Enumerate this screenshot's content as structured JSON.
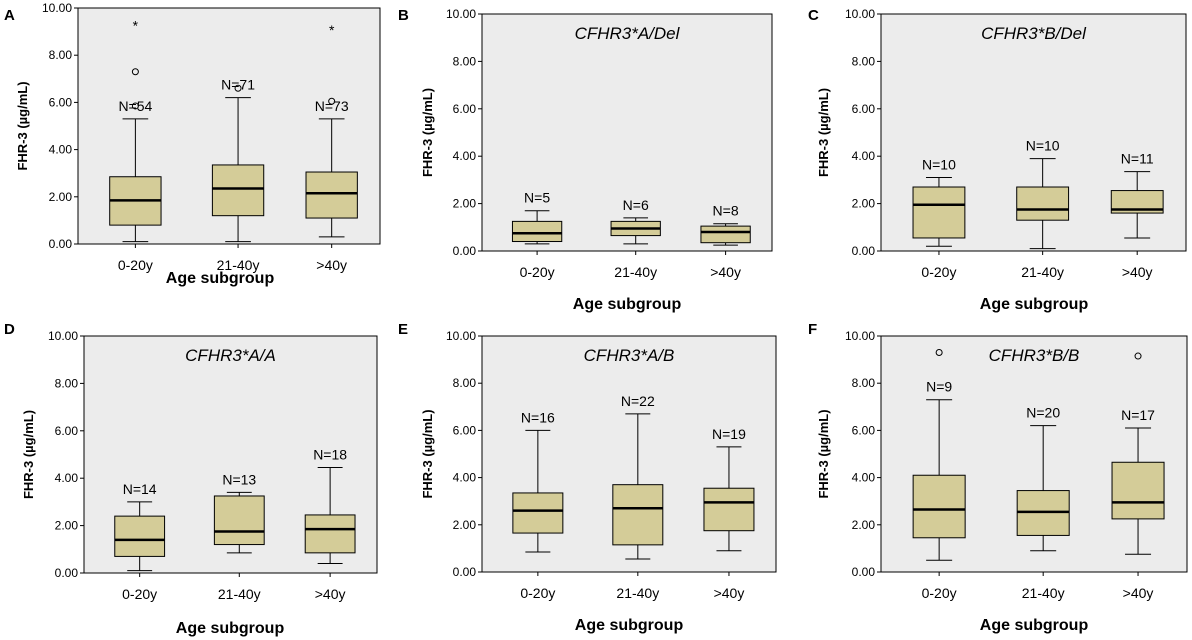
{
  "chart_data": [
    {
      "panel": "A",
      "type": "box",
      "title": "",
      "xlabel": "Age subgroup",
      "ylabel": "FHR-3 (µg/mL)",
      "ylim": [
        0,
        10
      ],
      "yticks": [
        "0.00",
        "2.00",
        "4.00",
        "6.00",
        "8.00",
        "10.00"
      ],
      "categories": [
        "0-20y",
        "21-40y",
        ">40y"
      ],
      "boxes": [
        {
          "label": "0-20y",
          "n": "N=54",
          "min": 0.1,
          "q1": 0.8,
          "median": 1.85,
          "q3": 2.85,
          "max": 5.3,
          "outliers": [
            {
              "v": 5.85,
              "m": "circle"
            },
            {
              "v": 7.3,
              "m": "circle"
            },
            {
              "v": 9.3,
              "m": "star"
            }
          ]
        },
        {
          "label": "21-40y",
          "n": "N=71",
          "min": 0.1,
          "q1": 1.2,
          "median": 2.35,
          "q3": 3.35,
          "max": 6.2,
          "outliers": [
            {
              "v": 6.6,
              "m": "circle"
            }
          ]
        },
        {
          "label": ">40y",
          "n": "N=73",
          "min": 0.3,
          "q1": 1.1,
          "median": 2.15,
          "q3": 3.05,
          "max": 5.3,
          "outliers": [
            {
              "v": 6.05,
              "m": "circle"
            },
            {
              "v": 9.1,
              "m": "star"
            }
          ]
        }
      ]
    },
    {
      "panel": "B",
      "type": "box",
      "title": "CFHR3*A/Del",
      "xlabel": "Age subgroup",
      "ylabel": "FHR-3 (µg/mL)",
      "ylim": [
        0,
        10
      ],
      "yticks": [
        "0.00",
        "2.00",
        "4.00",
        "6.00",
        "8.00",
        "10.00"
      ],
      "categories": [
        "0-20y",
        "21-40y",
        ">40y"
      ],
      "boxes": [
        {
          "label": "0-20y",
          "n": "N=5",
          "min": 0.3,
          "q1": 0.4,
          "median": 0.75,
          "q3": 1.25,
          "max": 1.7,
          "outliers": []
        },
        {
          "label": "21-40y",
          "n": "N=6",
          "min": 0.3,
          "q1": 0.65,
          "median": 0.95,
          "q3": 1.25,
          "max": 1.4,
          "outliers": []
        },
        {
          "label": ">40y",
          "n": "N=8",
          "min": 0.25,
          "q1": 0.35,
          "median": 0.8,
          "q3": 1.05,
          "max": 1.15,
          "outliers": []
        }
      ]
    },
    {
      "panel": "C",
      "type": "box",
      "title": "CFHR3*B/Del",
      "xlabel": "Age subgroup",
      "ylabel": "FHR-3 (µg/mL)",
      "ylim": [
        0,
        10
      ],
      "yticks": [
        "0.00",
        "2.00",
        "4.00",
        "6.00",
        "8.00",
        "10.00"
      ],
      "categories": [
        "0-20y",
        "21-40y",
        ">40y"
      ],
      "boxes": [
        {
          "label": "0-20y",
          "n": "N=10",
          "min": 0.2,
          "q1": 0.55,
          "median": 1.95,
          "q3": 2.7,
          "max": 3.1,
          "outliers": []
        },
        {
          "label": "21-40y",
          "n": "N=10",
          "min": 0.1,
          "q1": 1.3,
          "median": 1.75,
          "q3": 2.7,
          "max": 3.9,
          "outliers": []
        },
        {
          "label": ">40y",
          "n": "N=11",
          "min": 0.55,
          "q1": 1.6,
          "median": 1.75,
          "q3": 2.55,
          "max": 3.35,
          "outliers": []
        }
      ]
    },
    {
      "panel": "D",
      "type": "box",
      "title": "CFHR3*A/A",
      "xlabel": "Age subgroup",
      "ylabel": "FHR-3 (µg/mL)",
      "ylim": [
        0,
        10
      ],
      "yticks": [
        "0.00",
        "2.00",
        "4.00",
        "6.00",
        "8.00",
        "10.00"
      ],
      "categories": [
        "0-20y",
        "21-40y",
        ">40y"
      ],
      "boxes": [
        {
          "label": "0-20y",
          "n": "N=14",
          "min": 0.1,
          "q1": 0.7,
          "median": 1.4,
          "q3": 2.4,
          "max": 3.0,
          "outliers": []
        },
        {
          "label": "21-40y",
          "n": "N=13",
          "min": 0.85,
          "q1": 1.2,
          "median": 1.75,
          "q3": 3.25,
          "max": 3.4,
          "outliers": []
        },
        {
          "label": ">40y",
          "n": "N=18",
          "min": 0.4,
          "q1": 0.85,
          "median": 1.85,
          "q3": 2.45,
          "max": 4.45,
          "outliers": []
        }
      ]
    },
    {
      "panel": "E",
      "type": "box",
      "title": "CFHR3*A/B",
      "xlabel": "Age subgroup",
      "ylabel": "FHR-3 (µg/mL)",
      "ylim": [
        0,
        10
      ],
      "yticks": [
        "0.00",
        "2.00",
        "4.00",
        "6.00",
        "8.00",
        "10.00"
      ],
      "categories": [
        "0-20y",
        "21-40y",
        ">40y"
      ],
      "boxes": [
        {
          "label": "0-20y",
          "n": "N=16",
          "min": 0.85,
          "q1": 1.65,
          "median": 2.6,
          "q3": 3.35,
          "max": 6.0,
          "outliers": []
        },
        {
          "label": "21-40y",
          "n": "N=22",
          "min": 0.55,
          "q1": 1.15,
          "median": 2.7,
          "q3": 3.7,
          "max": 6.7,
          "outliers": []
        },
        {
          "label": ">40y",
          "n": "N=19",
          "min": 0.9,
          "q1": 1.75,
          "median": 2.95,
          "q3": 3.55,
          "max": 5.3,
          "outliers": []
        }
      ]
    },
    {
      "panel": "F",
      "type": "box",
      "title": "CFHR3*B/B",
      "xlabel": "Age subgroup",
      "ylabel": "FHR-3 (µg/mL)",
      "ylim": [
        0,
        10
      ],
      "yticks": [
        "0.00",
        "2.00",
        "4.00",
        "6.00",
        "8.00",
        "10.00"
      ],
      "categories": [
        "0-20y",
        "21-40y",
        ">40y"
      ],
      "boxes": [
        {
          "label": "0-20y",
          "n": "N=9",
          "min": 0.5,
          "q1": 1.45,
          "median": 2.65,
          "q3": 4.1,
          "max": 7.3,
          "outliers": [
            {
              "v": 9.3,
              "m": "circle"
            }
          ]
        },
        {
          "label": "21-40y",
          "n": "N=20",
          "min": 0.9,
          "q1": 1.55,
          "median": 2.55,
          "q3": 3.45,
          "max": 6.2,
          "outliers": []
        },
        {
          "label": ">40y",
          "n": "N=17",
          "min": 0.75,
          "q1": 2.25,
          "median": 2.95,
          "q3": 4.65,
          "max": 6.1,
          "outliers": [
            {
              "v": 9.15,
              "m": "circle"
            }
          ]
        }
      ]
    }
  ],
  "colors": {
    "plot_bg": "#ececec",
    "box_fill": "#d4cc98",
    "stroke": "#000000"
  }
}
